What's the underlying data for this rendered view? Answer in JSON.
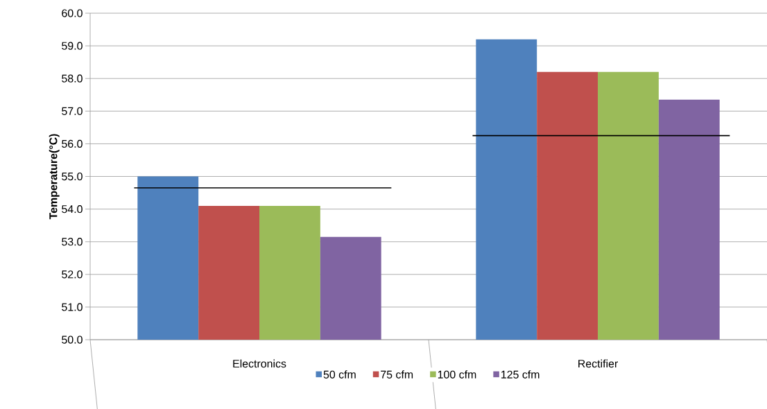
{
  "chart_data": {
    "type": "bar",
    "ylabel": "Temperature(°C)",
    "categories": [
      "Electronics",
      "Rectifier"
    ],
    "series": [
      {
        "name": "50 cfm",
        "color": "#4f81bd",
        "values": [
          55.0,
          59.2
        ]
      },
      {
        "name": "75 cfm",
        "color": "#c0504d",
        "values": [
          54.1,
          58.2
        ]
      },
      {
        "name": "100 cfm",
        "color": "#9bbb59",
        "values": [
          54.1,
          58.2
        ]
      },
      {
        "name": "125 cfm",
        "color": "#8064a2",
        "values": [
          53.15,
          57.35
        ]
      }
    ],
    "ylim": [
      50,
      60
    ],
    "yticks": [
      {
        "value": 50,
        "label": "50.0"
      },
      {
        "value": 51,
        "label": "51.0"
      },
      {
        "value": 52,
        "label": "52.0"
      },
      {
        "value": 53,
        "label": "53.0"
      },
      {
        "value": 54,
        "label": "54.0"
      },
      {
        "value": 55,
        "label": "55.0"
      },
      {
        "value": 56,
        "label": "56.0"
      },
      {
        "value": 57,
        "label": "57.0"
      },
      {
        "value": 58,
        "label": "58.0"
      },
      {
        "value": 59,
        "label": "59.0"
      },
      {
        "value": 60,
        "label": "60.0"
      }
    ],
    "ref_lines": [
      {
        "axis": "y",
        "value": 54.65,
        "color": "#000000"
      },
      {
        "axis": "y",
        "value": 56.25,
        "color": "#000000"
      }
    ],
    "grid": "y",
    "legend": "bottom"
  }
}
